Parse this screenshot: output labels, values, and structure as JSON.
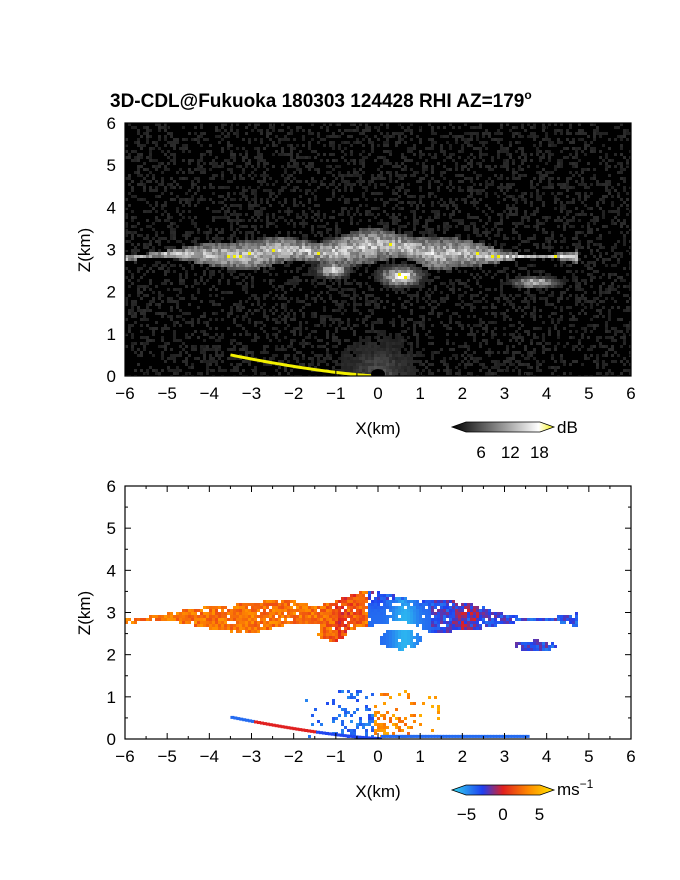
{
  "figure": {
    "title_main": "3D-CDL@Fukuoka 180303 124428 RHI AZ=179",
    "title_sup": "o"
  },
  "chart_data": [
    {
      "type": "heatmap",
      "name": "backscatter-intensity",
      "xlabel": "X(km)",
      "ylabel": "Z(km)",
      "xlim": [
        -6,
        6
      ],
      "ylim": [
        0,
        6
      ],
      "x_ticks": [
        "−6",
        "−5",
        "−4",
        "−3",
        "−2",
        "−1",
        "0",
        "1",
        "2",
        "3",
        "4",
        "5",
        "6"
      ],
      "y_ticks": [
        "0",
        "1",
        "2",
        "3",
        "4",
        "5",
        "6"
      ],
      "colorbar": {
        "unit": "dB",
        "ticks": [
          6,
          12,
          18
        ],
        "range": [
          0,
          21
        ]
      },
      "features": {
        "upper_cloud_layer": {
          "x_range": [
            -6,
            4.6
          ],
          "z_range": [
            2.6,
            3.7
          ],
          "peak_z": 3.6
        },
        "lower_cloud_blob": {
          "x_range": [
            -1.2,
            1.0
          ],
          "z_range": [
            2.1,
            2.6
          ]
        },
        "right_lower_patch": {
          "x_range": [
            3.2,
            4.2
          ],
          "z_range": [
            2.0,
            2.4
          ]
        },
        "ground_clutter": {
          "x_range": [
            -3.5,
            0
          ],
          "z_range": [
            0,
            0.55
          ]
        }
      }
    },
    {
      "type": "heatmap",
      "name": "doppler-velocity",
      "xlabel": "X(km)",
      "ylabel": "Z(km)",
      "xlim": [
        -6,
        6
      ],
      "ylim": [
        0,
        6
      ],
      "x_ticks": [
        "−6",
        "−5",
        "−4",
        "−3",
        "−2",
        "−1",
        "0",
        "1",
        "2",
        "3",
        "4",
        "5",
        "6"
      ],
      "y_ticks": [
        "0",
        "1",
        "2",
        "3",
        "4",
        "5",
        "6"
      ],
      "colorbar": {
        "unit": "ms",
        "unit_sup": "−1",
        "ticks": [
          "−5",
          "0",
          "5"
        ],
        "range": [
          -7,
          7
        ]
      },
      "features": {
        "left_cloud_velocity_ms": 3,
        "central_updraft_velocity_ms": -5,
        "right_cloud_velocity_ms": -4,
        "near_surface_left_velocity_ms": -3,
        "near_surface_right_velocity_ms": 3
      }
    }
  ],
  "colors": {
    "background": "#ffffff",
    "axes": "#000000",
    "highlight": "#f3f000",
    "velocity_neg": "#1f3ff0",
    "velocity_zero": "#e02020",
    "velocity_pos": "#ffd000"
  }
}
